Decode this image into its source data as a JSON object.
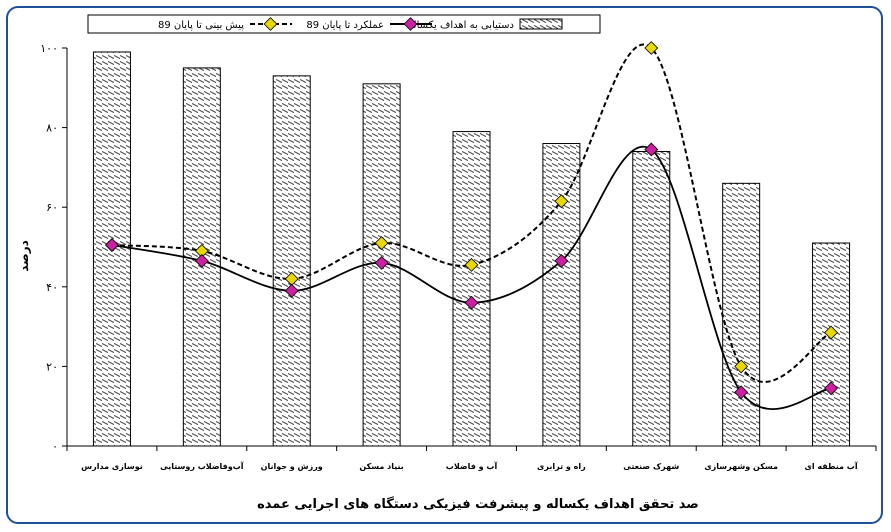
{
  "chart_data": {
    "type": "bar",
    "title": "صد تحقق اهداف یکساله و پیشرفت فیزیکی دستگاه های اجرایی عمده",
    "ylabel": "درصد",
    "xlabel": "",
    "ylim": [
      0,
      100
    ],
    "yticks": [
      "۰",
      "۲۰",
      "۴۰",
      "۶۰",
      "۸۰",
      "۱۰۰"
    ],
    "grid": false,
    "legend_position": "top",
    "categories": [
      "نوسازی مدارس",
      "آب‌وفاضلاب روستایی",
      "ورزش و جوانان",
      "بنیاد مسکن",
      "آب و فاضلاب",
      "راه و ترابری",
      "شهرک صنعتی",
      "مسکن وشهرسازی",
      "آب منطقه ای"
    ],
    "series": [
      {
        "name": "دستیابی به اهداف یکساله",
        "kind": "bar",
        "values": [
          99,
          95,
          93,
          91,
          79,
          76,
          74,
          66,
          51
        ]
      },
      {
        "name": "عملکرد تا پایان 89",
        "kind": "line",
        "values": [
          50.5,
          46.5,
          39,
          46,
          36,
          46.5,
          74.5,
          13.5,
          14.5
        ]
      },
      {
        "name": "پیش بینی تا پایان 89",
        "kind": "line-dashed",
        "values": [
          50.5,
          49,
          42,
          51,
          45.5,
          61.5,
          100,
          20,
          28.5
        ]
      }
    ],
    "colors": {
      "bar_fill": "#ffffff",
      "bar_hatch": "#555555",
      "marker_actual": "#cc1fa3",
      "marker_forecast": "#e8d800",
      "frame": "#1f4e9a"
    }
  }
}
